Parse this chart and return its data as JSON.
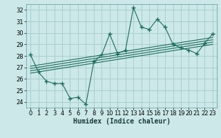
{
  "xlabel": "Humidex (Indice chaleur)",
  "ylabel": "",
  "bg_color": "#cce8e8",
  "grid_color": "#a8cece",
  "line_color": "#1a6b5a",
  "x_data": [
    0,
    1,
    2,
    3,
    4,
    5,
    6,
    7,
    8,
    9,
    10,
    11,
    12,
    13,
    14,
    15,
    16,
    17,
    18,
    19,
    20,
    21,
    22,
    23
  ],
  "y_data": [
    28.1,
    26.6,
    25.8,
    25.6,
    25.6,
    24.3,
    24.4,
    23.8,
    27.5,
    28.1,
    29.9,
    28.2,
    28.5,
    32.2,
    30.5,
    30.3,
    31.2,
    30.5,
    29.0,
    28.7,
    28.5,
    28.2,
    29.1,
    29.9
  ],
  "ylim": [
    23.5,
    32.5
  ],
  "xlim": [
    -0.5,
    23.5
  ],
  "yticks": [
    24,
    25,
    26,
    27,
    28,
    29,
    30,
    31,
    32
  ],
  "xticks": [
    0,
    1,
    2,
    3,
    4,
    5,
    6,
    7,
    8,
    9,
    10,
    11,
    12,
    13,
    14,
    15,
    16,
    17,
    18,
    19,
    20,
    21,
    22,
    23
  ],
  "reg_lines": [
    {
      "x0": 0,
      "y0": 26.5,
      "x1": 23,
      "y1": 29.0
    },
    {
      "x0": 0,
      "y0": 26.7,
      "x1": 23,
      "y1": 29.2
    },
    {
      "x0": 0,
      "y0": 26.9,
      "x1": 23,
      "y1": 29.4
    },
    {
      "x0": 0,
      "y0": 27.1,
      "x1": 23,
      "y1": 29.6
    }
  ],
  "tick_fontsize": 6,
  "xlabel_fontsize": 7,
  "marker": "+",
  "markersize": 4
}
